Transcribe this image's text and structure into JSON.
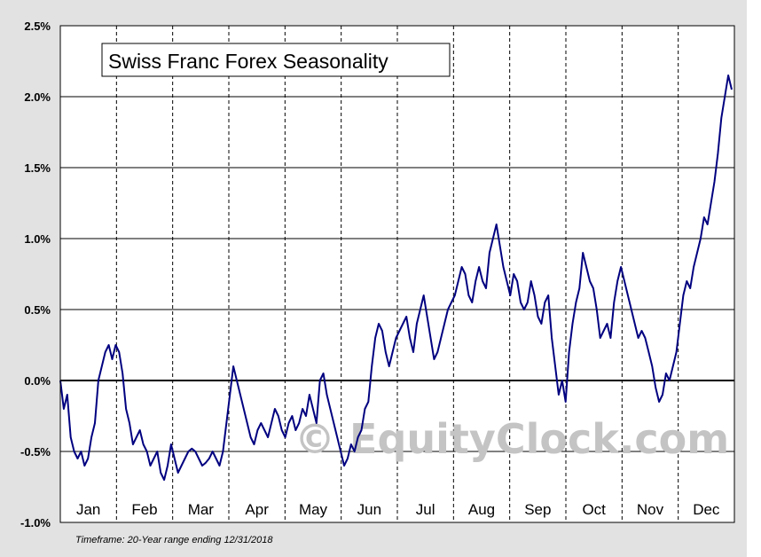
{
  "chart_data": {
    "type": "line",
    "title": "Swiss Franc Forex Seasonality",
    "xlabel": "",
    "ylabel": "",
    "ylim": [
      -1.0,
      2.5
    ],
    "y_ticks": [
      "2.5%",
      "2.0%",
      "1.5%",
      "1.0%",
      "0.5%",
      "0.0%",
      "-0.5%",
      "-1.0%"
    ],
    "y_tick_values": [
      2.5,
      2.0,
      1.5,
      1.0,
      0.5,
      0.0,
      -0.5,
      -1.0
    ],
    "categories": [
      "Jan",
      "Feb",
      "Mar",
      "Apr",
      "May",
      "Jun",
      "Jul",
      "Aug",
      "Sep",
      "Oct",
      "Nov",
      "Dec"
    ],
    "grid": true,
    "line_color": "#000080",
    "series_values": [
      0.0,
      -0.2,
      -0.1,
      -0.4,
      -0.5,
      -0.55,
      -0.5,
      -0.6,
      -0.55,
      -0.4,
      -0.3,
      0.0,
      0.1,
      0.2,
      0.25,
      0.15,
      0.25,
      0.2,
      0.05,
      -0.2,
      -0.3,
      -0.45,
      -0.4,
      -0.35,
      -0.45,
      -0.5,
      -0.6,
      -0.55,
      -0.5,
      -0.65,
      -0.7,
      -0.6,
      -0.45,
      -0.55,
      -0.65,
      -0.6,
      -0.55,
      -0.5,
      -0.48,
      -0.5,
      -0.55,
      -0.6,
      -0.58,
      -0.55,
      -0.5,
      -0.55,
      -0.6,
      -0.5,
      -0.3,
      -0.1,
      0.1,
      0.0,
      -0.1,
      -0.2,
      -0.3,
      -0.4,
      -0.45,
      -0.35,
      -0.3,
      -0.35,
      -0.4,
      -0.3,
      -0.2,
      -0.25,
      -0.35,
      -0.4,
      -0.3,
      -0.25,
      -0.35,
      -0.3,
      -0.2,
      -0.25,
      -0.1,
      -0.2,
      -0.3,
      0.0,
      0.05,
      -0.1,
      -0.2,
      -0.3,
      -0.4,
      -0.5,
      -0.6,
      -0.55,
      -0.45,
      -0.5,
      -0.4,
      -0.35,
      -0.2,
      -0.15,
      0.1,
      0.3,
      0.4,
      0.35,
      0.2,
      0.1,
      0.2,
      0.3,
      0.35,
      0.4,
      0.45,
      0.3,
      0.2,
      0.4,
      0.5,
      0.6,
      0.45,
      0.3,
      0.15,
      0.2,
      0.3,
      0.4,
      0.5,
      0.55,
      0.6,
      0.7,
      0.8,
      0.75,
      0.6,
      0.55,
      0.7,
      0.8,
      0.7,
      0.65,
      0.9,
      1.0,
      1.1,
      0.95,
      0.8,
      0.7,
      0.6,
      0.75,
      0.7,
      0.55,
      0.5,
      0.55,
      0.7,
      0.6,
      0.45,
      0.4,
      0.55,
      0.6,
      0.3,
      0.1,
      -0.1,
      0.0,
      -0.15,
      0.2,
      0.4,
      0.55,
      0.65,
      0.9,
      0.8,
      0.7,
      0.65,
      0.5,
      0.3,
      0.35,
      0.4,
      0.3,
      0.55,
      0.7,
      0.8,
      0.7,
      0.6,
      0.5,
      0.4,
      0.3,
      0.35,
      0.3,
      0.2,
      0.1,
      -0.05,
      -0.15,
      -0.1,
      0.05,
      0.0,
      0.1,
      0.2,
      0.4,
      0.6,
      0.7,
      0.65,
      0.8,
      0.9,
      1.0,
      1.15,
      1.1,
      1.25,
      1.4,
      1.6,
      1.85,
      2.0,
      2.15,
      2.05
    ]
  },
  "footnote": "Timeframe: 20-Year range ending 12/31/2018",
  "watermark": "© EquityClock.com"
}
